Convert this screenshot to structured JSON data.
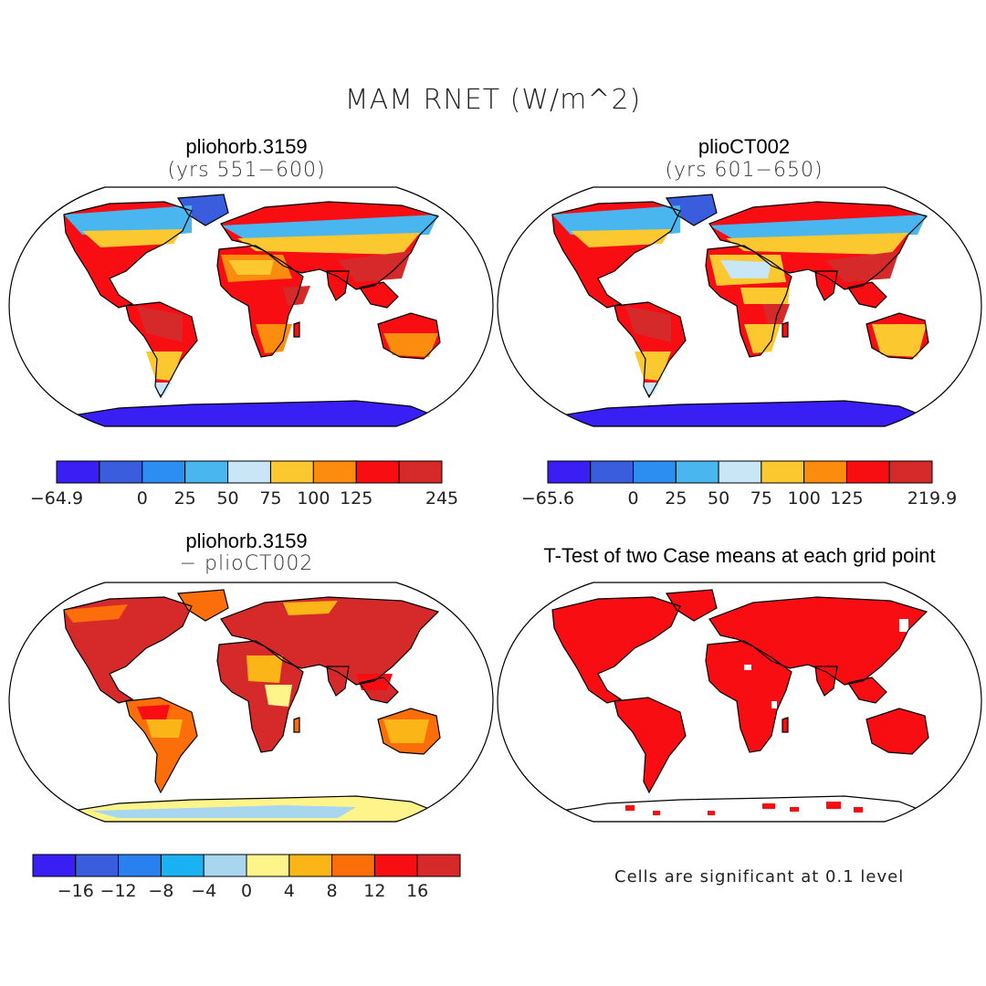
{
  "figure": {
    "title": "MAM RNET (W/m^2)",
    "note": "Cells are significant at 0.1 level"
  },
  "panels": [
    {
      "title": "pliohorb.3159",
      "subtitle": "(yrs 551−600)",
      "colorbar": {
        "colors": [
          "#3a1ff5",
          "#3a5ddd",
          "#2b8ef0",
          "#4ab6f0",
          "#c8e6f5",
          "#fcc830",
          "#fb8c0e",
          "#f70d12",
          "#d62a2a"
        ],
        "labels": [
          "−64.9",
          "0",
          "25",
          "50",
          "75",
          "100",
          "125",
          "245"
        ],
        "label_edges": [
          0,
          2,
          3,
          4,
          5,
          6,
          7,
          9
        ]
      }
    },
    {
      "title": "plioCT002",
      "subtitle": "(yrs 601−650)",
      "colorbar": {
        "colors": [
          "#3a1ff5",
          "#3a5ddd",
          "#2b8ef0",
          "#4ab6f0",
          "#c8e6f5",
          "#fcc830",
          "#fb8c0e",
          "#f70d12",
          "#d62a2a"
        ],
        "labels": [
          "−65.6",
          "0",
          "25",
          "50",
          "75",
          "100",
          "125",
          "219.9"
        ],
        "label_edges": [
          0,
          2,
          3,
          4,
          5,
          6,
          7,
          9
        ]
      }
    },
    {
      "title": "pliohorb.3159",
      "subtitle": "− plioCT002",
      "colorbar": {
        "colors": [
          "#3a1ff5",
          "#3a5ddd",
          "#2b80f0",
          "#1ab2f2",
          "#a8d6ef",
          "#fff48a",
          "#fcb516",
          "#fb6e0a",
          "#f70d12",
          "#d62a2a"
        ],
        "labels": [
          "−16",
          "−12",
          "−8",
          "−4",
          "0",
          "4",
          "8",
          "12",
          "16"
        ],
        "label_edges": [
          1,
          2,
          3,
          4,
          5,
          6,
          7,
          8,
          9
        ]
      }
    },
    {
      "title": "T-Test of two Case means at each grid point",
      "subtitle": ""
    }
  ]
}
